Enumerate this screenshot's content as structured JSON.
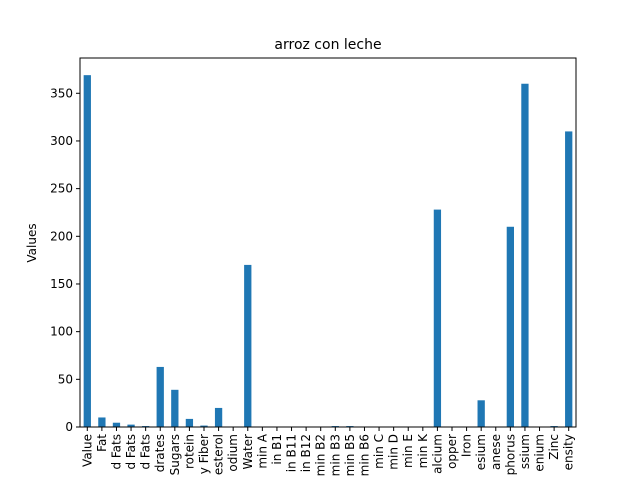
{
  "chart_data": {
    "type": "bar",
    "title": "arroz con leche",
    "xlabel": "",
    "ylabel": "Values",
    "ylim": [
      0,
      387
    ],
    "yticks": [
      0,
      50,
      100,
      150,
      200,
      250,
      300,
      350
    ],
    "grid": false,
    "legend": "none",
    "bar_color": "#1f77b4",
    "categories": [
      "Value",
      "Fat",
      "d Fats",
      "d Fats",
      "d Fats",
      "drates",
      "Sugars",
      "rotein",
      "y Fiber",
      "esterol",
      "odium",
      "Water",
      "min A",
      "in B1",
      "in B11",
      "in B12",
      "min B2",
      "min B3",
      "min B5",
      "min B6",
      "min C",
      "min D",
      "min E",
      "min K",
      "alcium",
      "opper",
      "Iron",
      "esium",
      "anese",
      "phorus",
      "ssium",
      "enium",
      "Zinc",
      "ensity"
    ],
    "values": [
      369,
      10,
      4.5,
      2.5,
      1,
      63,
      39,
      8.5,
      1.5,
      20,
      0,
      170,
      0,
      0,
      0,
      0,
      0,
      1,
      1,
      0,
      0,
      0,
      0,
      0,
      228,
      0,
      0,
      28,
      0,
      210,
      360,
      0,
      1,
      310
    ]
  }
}
